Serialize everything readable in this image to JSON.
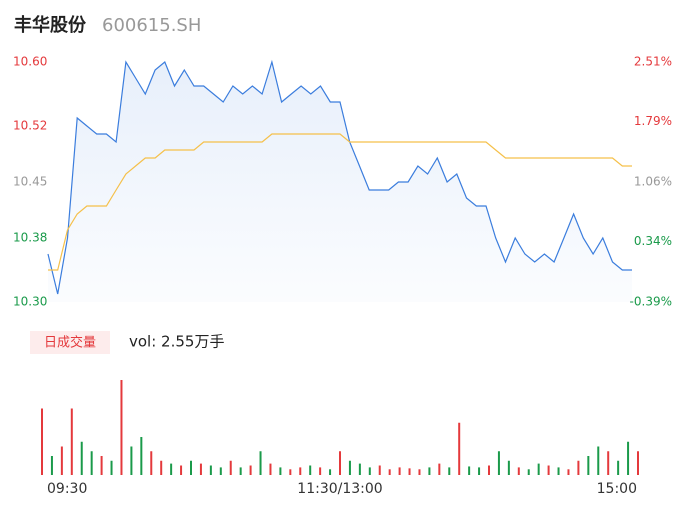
{
  "chart_data": [
    {
      "type": "line",
      "title": "丰华股份",
      "subtitle": "600615.SH",
      "x": [
        0,
        4,
        8,
        12,
        16,
        20,
        24,
        28,
        32,
        36,
        40,
        44,
        48,
        52,
        56,
        60,
        64,
        68,
        72,
        76,
        80,
        84,
        88,
        92,
        96,
        100,
        104,
        108,
        112,
        116,
        120,
        124,
        128,
        132,
        136,
        140,
        144,
        148,
        152,
        156,
        160,
        164,
        168,
        172,
        176,
        180,
        184,
        188,
        192,
        196,
        200,
        204,
        208,
        212,
        216,
        220,
        224,
        228,
        232,
        236,
        240
      ],
      "xlim": [
        0,
        240
      ],
      "xticks": [
        {
          "value": 0,
          "label": "09:30"
        },
        {
          "value": 120,
          "label": "11:30/13:00"
        },
        {
          "value": 240,
          "label": "15:00"
        }
      ],
      "ylim": [
        10.3,
        10.6
      ],
      "yticks": [
        {
          "value": 10.6,
          "label": "10.60"
        },
        10.52,
        10.45,
        10.38,
        {
          "value": 10.3,
          "label": "10.30"
        }
      ],
      "y2lim": [
        -0.39,
        2.51
      ],
      "y2ticks": [
        {
          "value": 2.51,
          "label": "2.51%"
        },
        {
          "value": 1.79,
          "label": "1.79%"
        },
        {
          "value": 1.06,
          "label": "1.06%"
        },
        {
          "value": 0.34,
          "label": "0.34%"
        },
        {
          "value": -0.39,
          "label": "-0.39%"
        }
      ],
      "tick_colors": [
        "#e4393c",
        "#e4393c",
        "#999999",
        "#1a9a4a",
        "#1a9a4a"
      ],
      "series": [
        {
          "color": "#3b7ddd",
          "area": true,
          "values": [
            10.36,
            10.31,
            10.38,
            10.53,
            10.52,
            10.51,
            10.51,
            10.5,
            10.6,
            10.58,
            10.56,
            10.59,
            10.6,
            10.57,
            10.59,
            10.57,
            10.57,
            10.56,
            10.55,
            10.57,
            10.56,
            10.57,
            10.56,
            10.6,
            10.55,
            10.56,
            10.57,
            10.56,
            10.57,
            10.55,
            10.55,
            10.5,
            10.47,
            10.44,
            10.44,
            10.44,
            10.45,
            10.45,
            10.47,
            10.46,
            10.48,
            10.45,
            10.46,
            10.43,
            10.42,
            10.42,
            10.38,
            10.35,
            10.38,
            10.36,
            10.35,
            10.36,
            10.35,
            10.38,
            10.41,
            10.38,
            10.36,
            10.38,
            10.35,
            10.34,
            10.34
          ]
        },
        {
          "color": "#f5c04a",
          "area": false,
          "values": [
            10.34,
            10.34,
            10.39,
            10.41,
            10.42,
            10.42,
            10.42,
            10.44,
            10.46,
            10.47,
            10.48,
            10.48,
            10.49,
            10.49,
            10.49,
            10.49,
            10.5,
            10.5,
            10.5,
            10.5,
            10.5,
            10.5,
            10.5,
            10.51,
            10.51,
            10.51,
            10.51,
            10.51,
            10.51,
            10.51,
            10.51,
            10.5,
            10.5,
            10.5,
            10.5,
            10.5,
            10.5,
            10.5,
            10.5,
            10.5,
            10.5,
            10.5,
            10.5,
            10.5,
            10.5,
            10.5,
            10.49,
            10.48,
            10.48,
            10.48,
            10.48,
            10.48,
            10.48,
            10.48,
            10.48,
            10.48,
            10.48,
            10.48,
            10.48,
            10.47,
            10.47
          ]
        }
      ]
    },
    {
      "type": "bar",
      "title": "日成交量",
      "annotation": "vol: 2.55万手",
      "x": [
        0,
        4,
        8,
        12,
        16,
        20,
        24,
        28,
        32,
        36,
        40,
        44,
        48,
        52,
        56,
        60,
        64,
        68,
        72,
        76,
        80,
        84,
        88,
        92,
        96,
        100,
        104,
        108,
        112,
        116,
        120,
        124,
        128,
        132,
        136,
        140,
        144,
        148,
        152,
        156,
        160,
        164,
        168,
        172,
        176,
        180,
        184,
        188,
        192,
        196,
        200,
        204,
        208,
        212,
        216,
        220,
        224,
        228,
        232,
        236,
        240
      ],
      "xlim": [
        0,
        240
      ],
      "ylim": [
        0,
        1000
      ],
      "up_color": "#e4393c",
      "down_color": "#1a9a4a",
      "values": [
        700,
        200,
        300,
        700,
        350,
        250,
        200,
        150,
        1000,
        300,
        400,
        250,
        150,
        120,
        100,
        150,
        120,
        100,
        80,
        150,
        80,
        100,
        250,
        120,
        80,
        60,
        80,
        100,
        80,
        60,
        250,
        150,
        120,
        80,
        100,
        60,
        80,
        70,
        60,
        80,
        120,
        80,
        550,
        90,
        80,
        100,
        250,
        150,
        80,
        60,
        120,
        100,
        80,
        60,
        150,
        200,
        300,
        250,
        150,
        350,
        250
      ]
    }
  ]
}
